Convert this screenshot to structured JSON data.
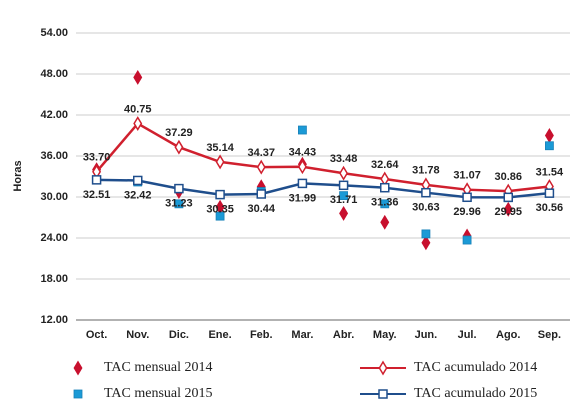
{
  "chart_data": {
    "type": "line",
    "y_label": "Horas",
    "categories": [
      "Oct.",
      "Nov.",
      "Dic.",
      "Ene.",
      "Feb.",
      "Mar.",
      "Abr.",
      "May.",
      "Jun.",
      "Jul.",
      "Ago.",
      "Sep."
    ],
    "ylim": [
      12,
      54
    ],
    "yticks": [
      {
        "value": 12,
        "label": "12.00"
      },
      {
        "value": 18,
        "label": "18.00"
      },
      {
        "value": 24,
        "label": "24.00"
      },
      {
        "value": 30,
        "label": "30.00"
      },
      {
        "value": 36,
        "label": "36.00"
      },
      {
        "value": 42,
        "label": "42.00"
      },
      {
        "value": 48,
        "label": "48.00"
      },
      {
        "value": 54,
        "label": "54.00"
      }
    ],
    "grid": true,
    "series": [
      {
        "name": "TAC mensual 2014",
        "color": "#c8102e",
        "style": "diamond",
        "values": [
          34,
          47.5,
          30.8,
          28.5,
          31.5,
          34.8,
          27.6,
          26.3,
          23.3,
          24.3,
          28.2,
          39
        ]
      },
      {
        "name": "TAC mensual 2015",
        "color": "#1b9ad6",
        "style": "square",
        "values": [
          32.5,
          32.2,
          29,
          27.2,
          30.8,
          39.8,
          30.2,
          29,
          24.6,
          23.7,
          29.9,
          37.5
        ]
      },
      {
        "name": "TAC acumulado 2014",
        "color": "#d0202e",
        "style": "line",
        "values": [
          33.7,
          40.75,
          37.29,
          35.14,
          34.37,
          34.43,
          33.48,
          32.64,
          31.78,
          31.07,
          30.86,
          31.54
        ],
        "value_labels": [
          "33.70",
          "40.75",
          "37.29",
          "35.14",
          "34.37",
          "34.43",
          "33.48",
          "32.64",
          "31.78",
          "31.07",
          "30.86",
          "31.54"
        ]
      },
      {
        "name": "TAC acumulado 2015",
        "color": "#1f4e8c",
        "style": "line",
        "values": [
          32.51,
          32.42,
          31.23,
          30.35,
          30.44,
          31.99,
          31.71,
          31.36,
          30.63,
          29.96,
          29.95,
          30.56
        ],
        "value_labels": [
          "32.51",
          "32.42",
          "31.23",
          "30.35",
          "30.44",
          "31.99",
          "31.71",
          "31.36",
          "30.63",
          "29.96",
          "29.95",
          "30.56"
        ]
      }
    ]
  }
}
